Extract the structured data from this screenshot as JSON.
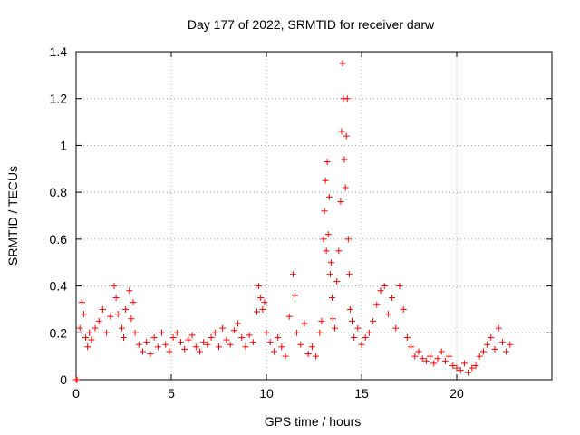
{
  "chart_data": {
    "type": "scatter",
    "title": "Day 177 of 2022, SRMTID for receiver darw",
    "xlabel": "GPS time / hours",
    "ylabel": "SRMTID / TECUs",
    "xlim": [
      0,
      25
    ],
    "ylim": [
      0,
      1.4
    ],
    "x_ticks": [
      "0",
      "5",
      "10",
      "15",
      "20"
    ],
    "y_ticks": [
      "0",
      "0.2",
      "0.4",
      "0.6",
      "0.8",
      "1",
      "1.2",
      "1.4"
    ],
    "grid": true,
    "marker": "+",
    "color": "#ff0000",
    "series": [
      {
        "name": "SRMTID",
        "x": [
          0.0,
          0.05,
          0.2,
          0.3,
          0.4,
          0.5,
          0.6,
          0.7,
          0.8,
          1.0,
          1.2,
          1.4,
          1.6,
          1.8,
          2.0,
          2.1,
          2.2,
          2.4,
          2.5,
          2.6,
          2.8,
          2.9,
          3.0,
          3.1,
          3.3,
          3.5,
          3.7,
          3.9,
          4.1,
          4.3,
          4.5,
          4.7,
          4.9,
          5.1,
          5.3,
          5.5,
          5.7,
          5.9,
          6.1,
          6.3,
          6.5,
          6.7,
          6.9,
          7.1,
          7.3,
          7.5,
          7.7,
          7.9,
          8.1,
          8.3,
          8.5,
          8.7,
          8.9,
          9.1,
          9.3,
          9.5,
          9.6,
          9.7,
          9.8,
          9.9,
          10.0,
          10.2,
          10.4,
          10.6,
          10.8,
          11.0,
          11.2,
          11.4,
          11.5,
          11.6,
          11.8,
          12.0,
          12.2,
          12.4,
          12.6,
          12.8,
          12.9,
          13.0,
          13.05,
          13.1,
          13.15,
          13.2,
          13.25,
          13.3,
          13.35,
          13.4,
          13.45,
          13.5,
          13.6,
          13.7,
          13.8,
          13.9,
          13.95,
          14.0,
          14.05,
          14.1,
          14.15,
          14.2,
          14.25,
          14.3,
          14.35,
          14.4,
          14.5,
          14.6,
          14.8,
          15.0,
          15.2,
          15.4,
          15.6,
          15.8,
          16.0,
          16.2,
          16.4,
          16.6,
          16.8,
          17.0,
          17.2,
          17.4,
          17.6,
          17.8,
          18.0,
          18.2,
          18.4,
          18.6,
          18.8,
          19.0,
          19.2,
          19.4,
          19.6,
          19.8,
          20.0,
          20.2,
          20.4,
          20.6,
          20.8,
          21.0,
          21.2,
          21.4,
          21.6,
          21.8,
          22.0,
          22.2,
          22.4,
          22.6,
          22.8
        ],
        "y": [
          0.0,
          0.0,
          0.22,
          0.33,
          0.28,
          0.18,
          0.14,
          0.2,
          0.17,
          0.22,
          0.25,
          0.3,
          0.2,
          0.27,
          0.4,
          0.35,
          0.28,
          0.22,
          0.18,
          0.3,
          0.38,
          0.26,
          0.33,
          0.2,
          0.15,
          0.12,
          0.16,
          0.11,
          0.18,
          0.14,
          0.2,
          0.15,
          0.12,
          0.18,
          0.2,
          0.16,
          0.13,
          0.17,
          0.19,
          0.14,
          0.12,
          0.16,
          0.15,
          0.18,
          0.2,
          0.14,
          0.22,
          0.17,
          0.15,
          0.21,
          0.24,
          0.18,
          0.14,
          0.19,
          0.16,
          0.29,
          0.4,
          0.35,
          0.3,
          0.33,
          0.2,
          0.16,
          0.12,
          0.18,
          0.14,
          0.1,
          0.27,
          0.45,
          0.36,
          0.2,
          0.15,
          0.24,
          0.11,
          0.14,
          0.1,
          0.2,
          0.25,
          0.6,
          0.72,
          0.85,
          0.55,
          0.93,
          0.62,
          0.78,
          0.45,
          0.5,
          0.35,
          0.26,
          0.22,
          0.42,
          0.55,
          0.76,
          1.06,
          1.35,
          1.2,
          0.94,
          0.82,
          1.04,
          1.2,
          0.6,
          0.45,
          0.3,
          0.25,
          0.18,
          0.22,
          0.15,
          0.18,
          0.2,
          0.25,
          0.32,
          0.38,
          0.4,
          0.28,
          0.35,
          0.22,
          0.4,
          0.3,
          0.18,
          0.14,
          0.1,
          0.12,
          0.09,
          0.08,
          0.1,
          0.07,
          0.09,
          0.12,
          0.08,
          0.1,
          0.06,
          0.05,
          0.04,
          0.07,
          0.03,
          0.05,
          0.06,
          0.1,
          0.12,
          0.15,
          0.18,
          0.13,
          0.22,
          0.16,
          0.12,
          0.15
        ]
      }
    ]
  }
}
